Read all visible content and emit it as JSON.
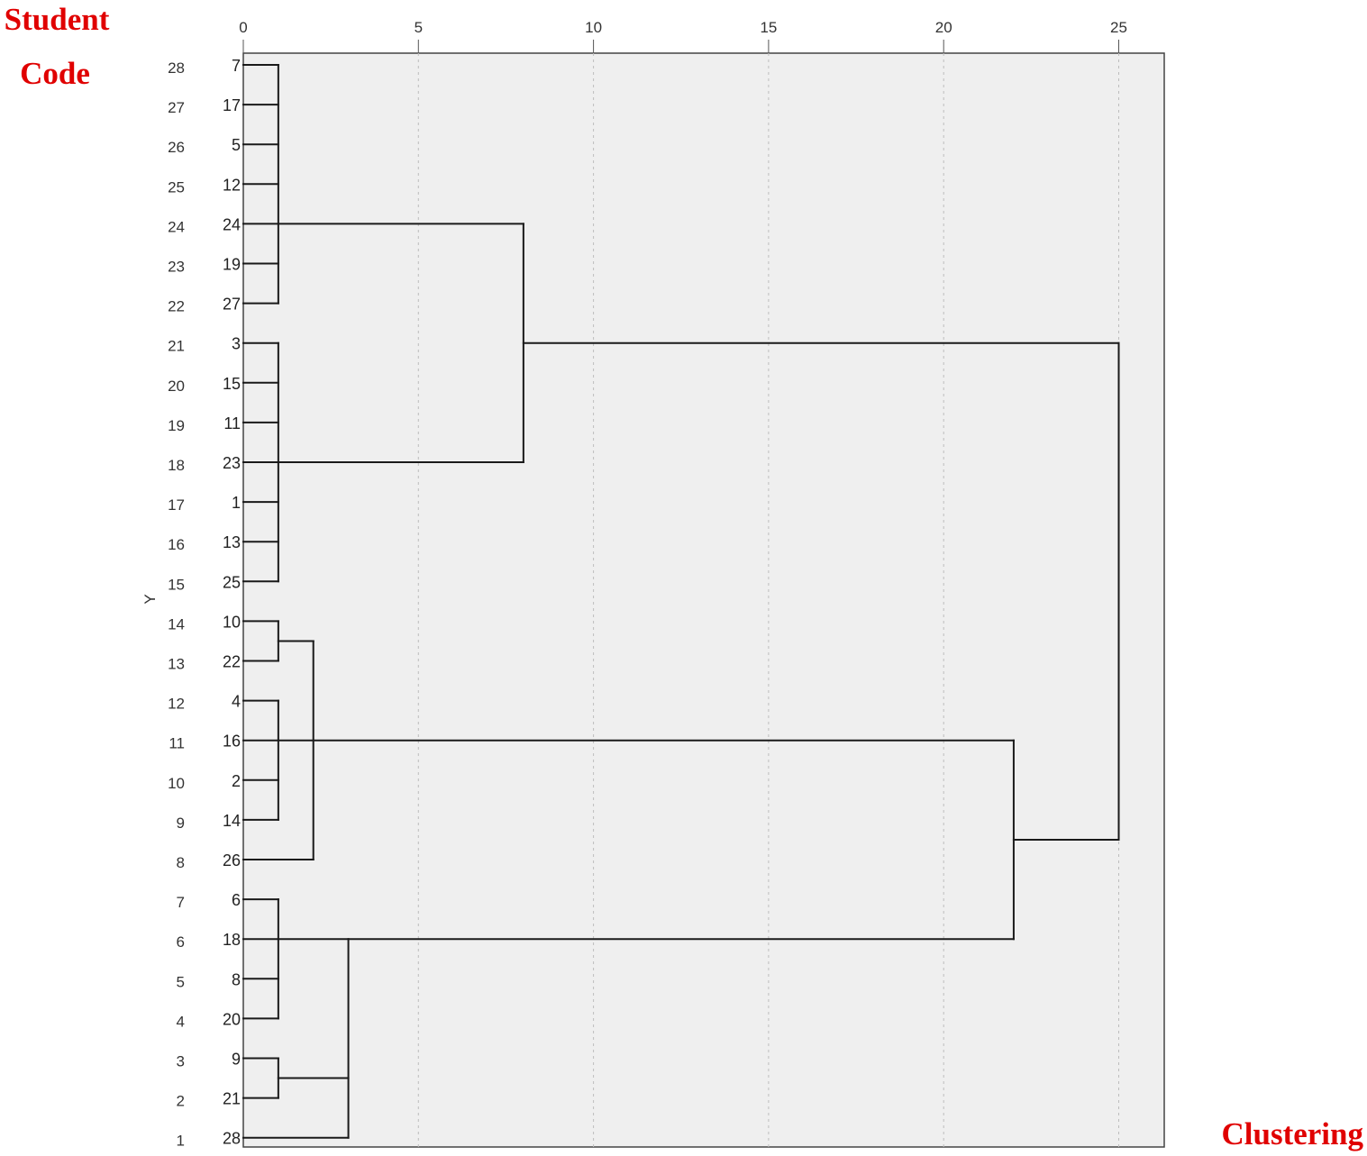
{
  "header_labels": {
    "top_left_line1": "Student",
    "top_left_line2": "Code",
    "bottom_right": "Clustering"
  },
  "chart_data": {
    "type": "dendrogram",
    "ylabel": "Y",
    "xlim": [
      0,
      25
    ],
    "x_ticks": [
      0,
      5,
      10,
      15,
      20,
      25
    ],
    "grid": true,
    "colors": {
      "plot_background": "#efefef",
      "lines": "#1a1a1a",
      "labels_accent": "#e00000"
    },
    "rows": [
      {
        "rank": 28,
        "code": "7"
      },
      {
        "rank": 27,
        "code": "17"
      },
      {
        "rank": 26,
        "code": "5"
      },
      {
        "rank": 25,
        "code": "12"
      },
      {
        "rank": 24,
        "code": "24"
      },
      {
        "rank": 23,
        "code": "19"
      },
      {
        "rank": 22,
        "code": "27"
      },
      {
        "rank": 21,
        "code": "3"
      },
      {
        "rank": 20,
        "code": "15"
      },
      {
        "rank": 19,
        "code": "11"
      },
      {
        "rank": 18,
        "code": "23"
      },
      {
        "rank": 17,
        "code": "1"
      },
      {
        "rank": 16,
        "code": "13"
      },
      {
        "rank": 15,
        "code": "25"
      },
      {
        "rank": 14,
        "code": "10"
      },
      {
        "rank": 13,
        "code": "22"
      },
      {
        "rank": 12,
        "code": "4"
      },
      {
        "rank": 11,
        "code": "16"
      },
      {
        "rank": 10,
        "code": "2"
      },
      {
        "rank": 9,
        "code": "14"
      },
      {
        "rank": 8,
        "code": "26"
      },
      {
        "rank": 7,
        "code": "6"
      },
      {
        "rank": 6,
        "code": "18"
      },
      {
        "rank": 5,
        "code": "8"
      },
      {
        "rank": 4,
        "code": "20"
      },
      {
        "rank": 3,
        "code": "9"
      },
      {
        "rank": 2,
        "code": "21"
      },
      {
        "rank": 1,
        "code": "28"
      }
    ],
    "merges": [
      {
        "id": "A",
        "height": 1,
        "members": [
          0,
          1,
          2,
          3,
          4,
          5,
          6
        ],
        "join_at": 4
      },
      {
        "id": "B",
        "height": 1,
        "members": [
          7,
          8,
          9,
          10,
          11,
          12,
          13
        ],
        "join_at": 10
      },
      {
        "id": "C",
        "height": 8,
        "members": [
          "A",
          "B"
        ]
      },
      {
        "id": "D",
        "height": 1,
        "members": [
          14,
          15
        ]
      },
      {
        "id": "E",
        "height": 1,
        "members": [
          16,
          17,
          18,
          19
        ],
        "join_at": 17
      },
      {
        "id": "F",
        "height": 2,
        "members": [
          "D",
          "E",
          20
        ],
        "join_at": 17
      },
      {
        "id": "G",
        "height": 1,
        "members": [
          21,
          22,
          23,
          24
        ],
        "join_at": 22
      },
      {
        "id": "H",
        "height": 1,
        "members": [
          25,
          26
        ]
      },
      {
        "id": "I",
        "height": 3,
        "members": [
          "G",
          "H",
          27
        ],
        "join_at": 22
      },
      {
        "id": "J",
        "height": 22,
        "members": [
          "F",
          "I"
        ]
      },
      {
        "id": "K",
        "height": 25,
        "members": [
          "C",
          "J"
        ]
      }
    ]
  }
}
